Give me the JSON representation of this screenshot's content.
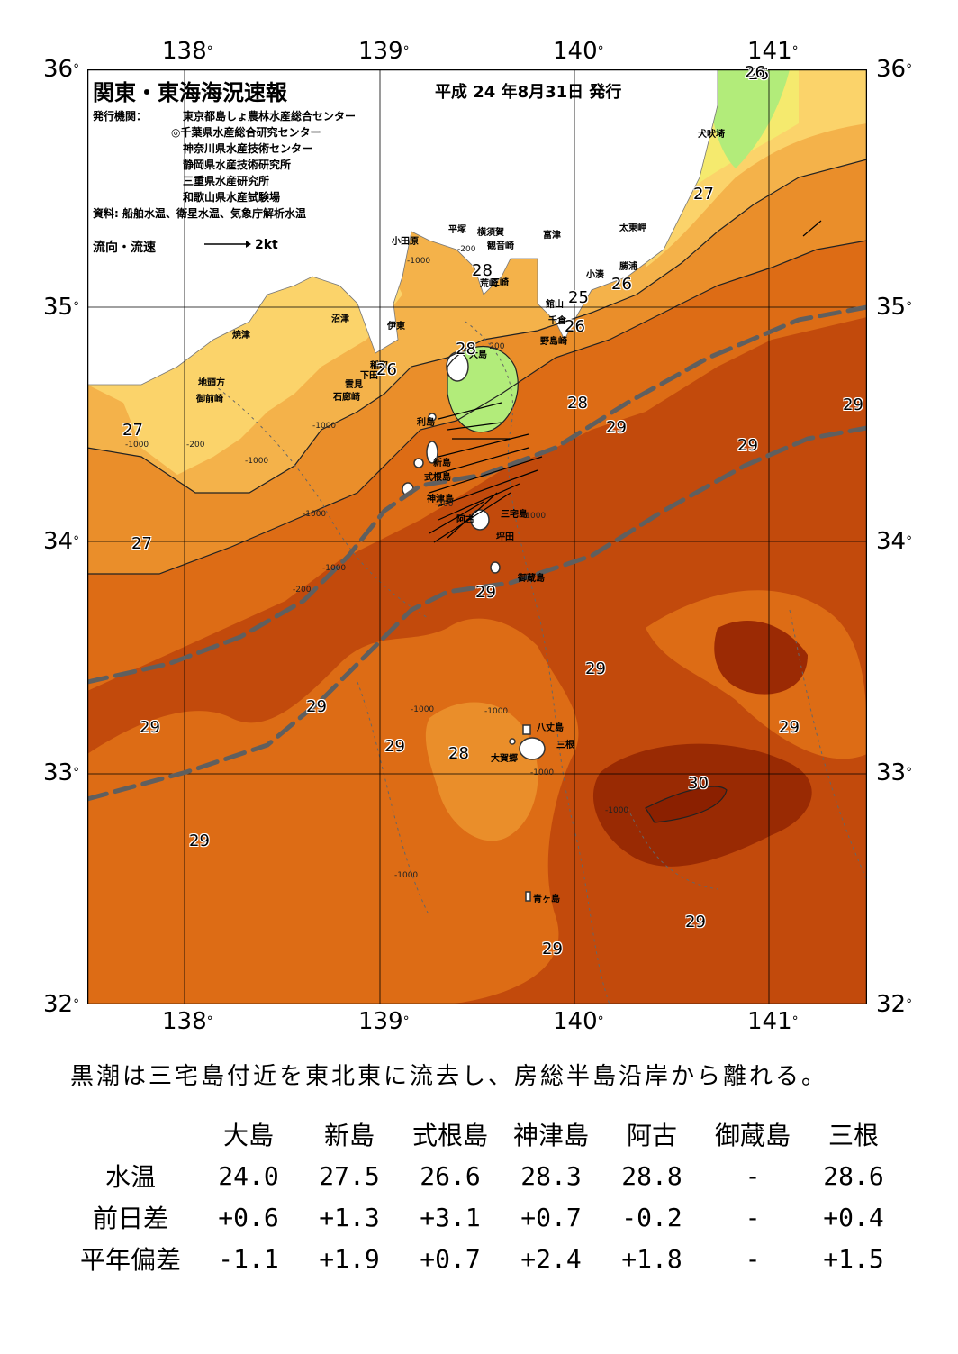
{
  "header": {
    "title": "関東・東海海況速報",
    "issue_date": "平成 24 年8月31日 発行",
    "issuer_label": "発行機関：",
    "issuers": [
      "東京都島しょ農林水産総合センター",
      "◎千葉県水産総合研究センター",
      "神奈川県水産技術センター",
      "静岡県水産技術研究所",
      "三重県水産研究所",
      "和歌山県水産試験場"
    ],
    "data_source": "資料: 船舶水温、衛星水温、気象庁解析水温",
    "flow_legend": "流向・流速",
    "flow_scale": "2kt"
  },
  "axes": {
    "lon_labels": [
      "138",
      "139",
      "140",
      "141"
    ],
    "lat_labels": [
      "36",
      "35",
      "34",
      "33",
      "32"
    ],
    "degree_symbol": "°"
  },
  "colors": {
    "t25": "#b2ec7a",
    "t26": "#f5ea6e",
    "t27": "#fbd36a",
    "t28_light": "#f4b24a",
    "t28": "#ea8e2a",
    "t29": "#dd6c15",
    "t29_dark": "#c24a0c",
    "t30": "#8b2000",
    "land": "#ffffff",
    "kuroshio": "#5f5f5f"
  },
  "map_labels": {
    "places": [
      "犬吠埼",
      "太東岬",
      "勝浦",
      "小湊",
      "館山",
      "千倉",
      "野島崎",
      "富津",
      "観音崎",
      "横須賀",
      "荒崎",
      "三崎",
      "平塚",
      "小田原",
      "沼津",
      "伊東",
      "稲取",
      "下田",
      "雲見",
      "石廊崎",
      "焼津",
      "地頭方",
      "御前崎",
      "大島",
      "利島",
      "新島",
      "式根島",
      "神津島",
      "三宅島",
      "阿古",
      "坪田",
      "御蔵島",
      "八丈島",
      "三根",
      "大賀郷",
      "青ヶ島"
    ],
    "isotherms": [
      "26",
      "27",
      "26",
      "28",
      "25",
      "26",
      "26",
      "28",
      "26",
      "27",
      "27",
      "28",
      "29",
      "29",
      "29",
      "29",
      "29",
      "29",
      "29",
      "29",
      "28",
      "29",
      "30",
      "29",
      "29",
      "29"
    ],
    "depths": [
      "-200",
      "-1000",
      "-200",
      "-1000",
      "-200",
      "-1000",
      "-1000",
      "-200",
      "-1000",
      "-1000",
      "-1000",
      "-200",
      "-1000",
      "-1000",
      "-1000",
      "-1000",
      "-1000"
    ]
  },
  "summary": "黒潮は三宅島付近を東北東に流去し、房総半島沿岸から離れる。",
  "table": {
    "columns": [
      "大島",
      "新島",
      "式根島",
      "神津島",
      "阿古",
      "御蔵島",
      "三根"
    ],
    "rows": [
      {
        "label": "水温",
        "values": [
          "24.0",
          "27.5",
          "26.6",
          "28.3",
          "28.8",
          "-",
          "28.6"
        ]
      },
      {
        "label": "前日差",
        "values": [
          "+0.6",
          "+1.3",
          "+3.1",
          "+0.7",
          "-0.2",
          "-",
          "+0.4"
        ]
      },
      {
        "label": "平年偏差",
        "values": [
          "-1.1",
          "+1.9",
          "+0.7",
          "+2.4",
          "+1.8",
          "-",
          "+1.5"
        ]
      }
    ]
  }
}
